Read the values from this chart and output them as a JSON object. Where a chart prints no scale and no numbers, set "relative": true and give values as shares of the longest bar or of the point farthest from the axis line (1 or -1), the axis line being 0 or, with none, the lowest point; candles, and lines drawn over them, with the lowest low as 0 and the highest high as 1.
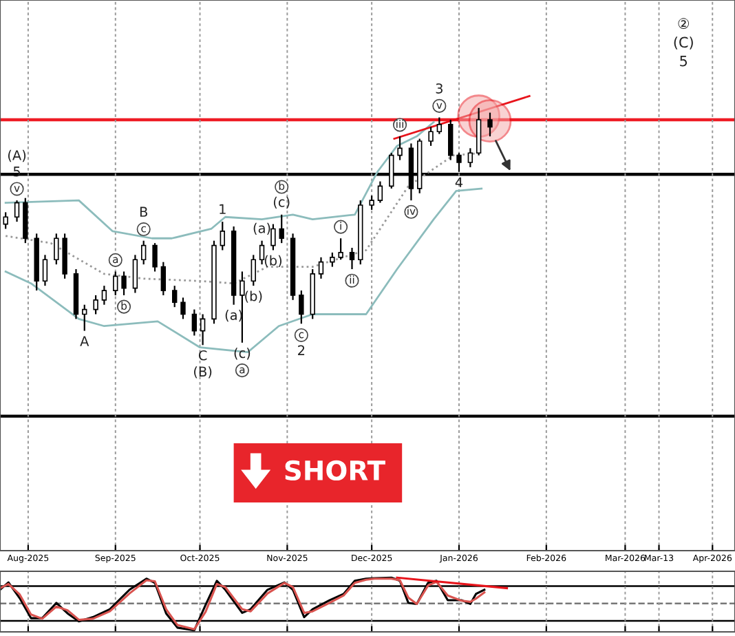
{
  "chart_data": [
    {
      "type": "candlestick",
      "relative": true,
      "grid": "x",
      "x": [
        "2025-07-24",
        "2025-07-28",
        "2025-07-31",
        "2025-08-04",
        "2025-08-07",
        "2025-08-11",
        "2025-08-14",
        "2025-08-18",
        "2025-08-21",
        "2025-08-25",
        "2025-08-28",
        "2025-09-01",
        "2025-09-04",
        "2025-09-08",
        "2025-09-11",
        "2025-09-15",
        "2025-09-18",
        "2025-09-22",
        "2025-09-25",
        "2025-09-29",
        "2025-10-02",
        "2025-10-06",
        "2025-10-09",
        "2025-10-13",
        "2025-10-16",
        "2025-10-20",
        "2025-10-23",
        "2025-10-27",
        "2025-10-30",
        "2025-11-03",
        "2025-11-06",
        "2025-11-10",
        "2025-11-13",
        "2025-11-17",
        "2025-11-20",
        "2025-11-24",
        "2025-11-27",
        "2025-12-01",
        "2025-12-04",
        "2025-12-08",
        "2025-12-11",
        "2025-12-15",
        "2025-12-18",
        "2025-12-22",
        "2025-12-25",
        "2025-12-29",
        "2026-01-01",
        "2026-01-05",
        "2026-01-08",
        "2026-01-12"
      ],
      "ohlc": [
        [
          0.51,
          0.56,
          0.49,
          0.54
        ],
        [
          0.54,
          0.61,
          0.52,
          0.6
        ],
        [
          0.6,
          0.62,
          0.43,
          0.45
        ],
        [
          0.45,
          0.47,
          0.23,
          0.27
        ],
        [
          0.27,
          0.38,
          0.25,
          0.36
        ],
        [
          0.36,
          0.47,
          0.34,
          0.45
        ],
        [
          0.45,
          0.47,
          0.28,
          0.3
        ],
        [
          0.3,
          0.32,
          0.11,
          0.13
        ],
        [
          0.13,
          0.17,
          0.06,
          0.15
        ],
        [
          0.15,
          0.21,
          0.13,
          0.19
        ],
        [
          0.19,
          0.25,
          0.17,
          0.23
        ],
        [
          0.23,
          0.31,
          0.21,
          0.29
        ],
        [
          0.29,
          0.31,
          0.21,
          0.24
        ],
        [
          0.24,
          0.38,
          0.22,
          0.36
        ],
        [
          0.36,
          0.44,
          0.34,
          0.42
        ],
        [
          0.42,
          0.43,
          0.31,
          0.33
        ],
        [
          0.33,
          0.35,
          0.21,
          0.23
        ],
        [
          0.23,
          0.25,
          0.16,
          0.18
        ],
        [
          0.18,
          0.2,
          0.11,
          0.13
        ],
        [
          0.13,
          0.15,
          0.04,
          0.06
        ],
        [
          0.06,
          0.13,
          0.0,
          0.11
        ],
        [
          0.11,
          0.44,
          0.09,
          0.42
        ],
        [
          0.42,
          0.52,
          0.4,
          0.48
        ],
        [
          0.48,
          0.5,
          0.17,
          0.21
        ],
        [
          0.21,
          0.31,
          0.01,
          0.27
        ],
        [
          0.27,
          0.38,
          0.25,
          0.36
        ],
        [
          0.36,
          0.44,
          0.34,
          0.42
        ],
        [
          0.42,
          0.51,
          0.4,
          0.49
        ],
        [
          0.49,
          0.55,
          0.43,
          0.45
        ],
        [
          0.45,
          0.47,
          0.19,
          0.21
        ],
        [
          0.21,
          0.23,
          0.09,
          0.13
        ],
        [
          0.13,
          0.32,
          0.11,
          0.3
        ],
        [
          0.3,
          0.37,
          0.28,
          0.35
        ],
        [
          0.35,
          0.39,
          0.33,
          0.37
        ],
        [
          0.37,
          0.45,
          0.36,
          0.39
        ],
        [
          0.39,
          0.41,
          0.32,
          0.36
        ],
        [
          0.36,
          0.61,
          0.34,
          0.59
        ],
        [
          0.59,
          0.63,
          0.57,
          0.61
        ],
        [
          0.61,
          0.69,
          0.6,
          0.67
        ],
        [
          0.67,
          0.81,
          0.66,
          0.8
        ],
        [
          0.8,
          0.88,
          0.78,
          0.83
        ],
        [
          0.83,
          0.85,
          0.61,
          0.66
        ],
        [
          0.66,
          0.87,
          0.64,
          0.86
        ],
        [
          0.86,
          0.92,
          0.84,
          0.9
        ],
        [
          0.9,
          0.96,
          0.89,
          0.93
        ],
        [
          0.93,
          0.95,
          0.78,
          0.8
        ],
        [
          0.8,
          0.81,
          0.73,
          0.77
        ],
        [
          0.77,
          0.83,
          0.75,
          0.81
        ],
        [
          0.81,
          1.0,
          0.8,
          0.95
        ],
        [
          0.95,
          0.98,
          0.88,
          0.92
        ]
      ],
      "series": [
        {
          "type": "line",
          "color": "#8cbcbc",
          "line_style": "solid",
          "x": [
            "2025-07-24",
            "2025-08-19",
            "2025-08-31",
            "2025-09-14",
            "2025-09-21",
            "2025-10-05",
            "2025-10-10",
            "2025-10-23",
            "2025-11-03",
            "2025-11-10",
            "2025-11-25",
            "2025-12-03",
            "2025-12-10",
            "2025-12-17",
            "2025-12-23"
          ],
          "values": [
            0.6,
            0.61,
            0.48,
            0.45,
            0.45,
            0.49,
            0.54,
            0.53,
            0.55,
            0.53,
            0.55,
            0.73,
            0.84,
            0.88,
            0.94
          ]
        },
        {
          "type": "line",
          "color": "#8cbcbc",
          "line_style": "solid",
          "x": [
            "2025-07-24",
            "2025-08-02",
            "2025-08-19",
            "2025-08-28",
            "2025-09-16",
            "2025-10-01",
            "2025-10-18",
            "2025-10-29",
            "2025-11-10",
            "2025-11-29",
            "2025-12-10",
            "2025-12-23",
            "2025-12-31",
            "2026-01-09"
          ],
          "values": [
            0.31,
            0.26,
            0.11,
            0.08,
            0.1,
            -0.01,
            -0.03,
            0.08,
            0.13,
            0.13,
            0.32,
            0.53,
            0.65,
            0.66
          ]
        },
        {
          "type": "line",
          "color": "#999999",
          "line_style": "dotted",
          "x": [
            "2025-07-24",
            "2025-08-09",
            "2025-08-28",
            "2025-09-11",
            "2025-10-01",
            "2025-10-13",
            "2025-10-25",
            "2025-11-10",
            "2025-11-29",
            "2025-12-14",
            "2025-12-30",
            "2026-01-09"
          ],
          "values": [
            0.46,
            0.43,
            0.3,
            0.28,
            0.27,
            0.26,
            0.33,
            0.33,
            0.4,
            0.67,
            0.8,
            0.81
          ]
        },
        {
          "type": "line",
          "color": "#e8141b",
          "line_style": "solid",
          "x": [
            "2025-12-09",
            "2026-01-26"
          ],
          "values": [
            0.87,
            1.05
          ]
        }
      ],
      "ref_lines": [
        {
          "axis": "y",
          "value": 0.95,
          "color": "#ee1c25"
        },
        {
          "axis": "y",
          "value": 0.72,
          "color": "#000000"
        },
        {
          "axis": "y",
          "value": -0.3,
          "color": "#000000"
        }
      ],
      "xlim": [
        "2025-07-22",
        "2026-04-09"
      ],
      "xticks": [
        {
          "value": "2025-08-01",
          "label": "Aug-2025"
        },
        {
          "value": "2025-09-01",
          "label": "Sep-2025"
        },
        {
          "value": "2025-10-01",
          "label": "Oct-2025"
        },
        {
          "value": "2025-11-01",
          "label": "Nov-2025"
        },
        {
          "value": "2025-12-01",
          "label": "Dec-2025"
        },
        {
          "value": "2026-01-01",
          "label": "Jan-2026"
        },
        {
          "value": "2026-02-01",
          "label": "Feb-2026"
        },
        {
          "value": "2026-03-01",
          "label": "Mar-2026"
        },
        {
          "value": "2026-03-13",
          "label": "Mar-13"
        },
        {
          "value": "2026-04-01",
          "label": "Apr-2026"
        }
      ],
      "annotations": [
        {
          "text": "v",
          "x": "2025-07-28",
          "y": 0.61
        },
        {
          "text": "5",
          "x": "2025-07-28",
          "y": 0.61
        },
        {
          "text": "(A)",
          "x": "2025-07-28",
          "y": 0.61
        },
        {
          "text": "A",
          "x": "2025-08-21",
          "y": 0.06
        },
        {
          "text": "a",
          "x": "2025-09-01",
          "y": 0.31
        },
        {
          "text": "b",
          "x": "2025-09-04",
          "y": 0.21
        },
        {
          "text": "c",
          "x": "2025-09-11",
          "y": 0.44
        },
        {
          "text": "B",
          "x": "2025-09-11",
          "y": 0.44
        },
        {
          "text": "C",
          "x": "2025-10-02",
          "y": 0.0
        },
        {
          "text": "(B)",
          "x": "2025-10-02",
          "y": 0.0
        },
        {
          "text": "1",
          "x": "2025-10-09",
          "y": 0.52
        },
        {
          "text": "(a)",
          "x": "2025-10-13",
          "y": 0.17
        },
        {
          "text": "(b)",
          "x": "2025-10-20",
          "y": 0.25
        },
        {
          "text": "(c)",
          "x": "2025-10-16",
          "y": 0.01
        },
        {
          "text": "a",
          "x": "2025-10-16",
          "y": 0.01
        },
        {
          "text": "(a)",
          "x": "2025-10-23",
          "y": 0.44
        },
        {
          "text": "(b)",
          "x": "2025-10-27",
          "y": 0.4
        },
        {
          "text": "(c)",
          "x": "2025-10-30",
          "y": 0.55
        },
        {
          "text": "b",
          "x": "2025-10-30",
          "y": 0.55
        },
        {
          "text": "c",
          "x": "2025-11-06",
          "y": 0.09
        },
        {
          "text": "2",
          "x": "2025-11-06",
          "y": 0.09
        },
        {
          "text": "i",
          "x": "2025-11-20",
          "y": 0.45
        },
        {
          "text": "ii",
          "x": "2025-11-24",
          "y": 0.32
        },
        {
          "text": "iii",
          "x": "2025-12-11",
          "y": 0.88
        },
        {
          "text": "iv",
          "x": "2025-12-15",
          "y": 0.61
        },
        {
          "text": "v",
          "x": "2025-12-25",
          "y": 0.96
        },
        {
          "text": "3",
          "x": "2025-12-25",
          "y": 0.96
        },
        {
          "text": "4",
          "x": "2026-01-01",
          "y": 0.73
        },
        "②",
        "(C)",
        "5",
        "SHORT"
      ]
    },
    {
      "type": "line",
      "relative": true,
      "grid": "x",
      "tick_labels": false,
      "series": [
        {
          "color": "#000000",
          "line_style": "solid",
          "x": [
            "2025-07-22",
            "2025-07-25",
            "2025-07-29",
            "2025-08-02",
            "2025-08-06",
            "2025-08-11",
            "2025-08-15",
            "2025-08-19",
            "2025-08-24",
            "2025-08-30",
            "2025-09-06",
            "2025-09-12",
            "2025-09-15",
            "2025-09-19",
            "2025-09-23",
            "2025-09-29",
            "2025-10-03",
            "2025-10-07",
            "2025-10-10",
            "2025-10-16",
            "2025-10-19",
            "2025-10-25",
            "2025-10-31",
            "2025-11-03",
            "2025-11-07",
            "2025-11-10",
            "2025-11-16",
            "2025-11-21",
            "2025-11-25",
            "2025-11-29",
            "2025-12-02",
            "2025-12-08",
            "2025-12-11",
            "2025-12-14",
            "2025-12-17",
            "2025-12-21",
            "2025-12-24",
            "2025-12-28",
            "2026-01-02",
            "2026-01-05",
            "2026-01-07",
            "2026-01-10"
          ],
          "values": [
            0.77,
            0.91,
            0.61,
            0.23,
            0.23,
            0.52,
            0.32,
            0.17,
            0.25,
            0.4,
            0.77,
            0.98,
            0.9,
            0.32,
            0.05,
            0.0,
            0.48,
            0.94,
            0.77,
            0.33,
            0.4,
            0.77,
            0.91,
            0.77,
            0.25,
            0.4,
            0.57,
            0.69,
            0.94,
            0.98,
            0.99,
            1.0,
            0.94,
            0.52,
            0.5,
            0.9,
            0.94,
            0.57,
            0.57,
            0.5,
            0.69,
            0.77
          ]
        },
        {
          "color": "#d9534f",
          "line_style": "solid",
          "x": [
            "2025-07-22",
            "2025-07-25",
            "2025-07-29",
            "2025-08-02",
            "2025-08-06",
            "2025-08-11",
            "2025-08-15",
            "2025-08-19",
            "2025-08-24",
            "2025-08-30",
            "2025-09-06",
            "2025-09-12",
            "2025-09-15",
            "2025-09-19",
            "2025-09-23",
            "2025-09-29",
            "2025-10-03",
            "2025-10-07",
            "2025-10-10",
            "2025-10-16",
            "2025-10-19",
            "2025-10-25",
            "2025-10-31",
            "2025-11-03",
            "2025-11-07",
            "2025-11-10",
            "2025-11-16",
            "2025-11-21",
            "2025-11-25",
            "2025-11-29",
            "2025-12-02",
            "2025-12-08",
            "2025-12-11",
            "2025-12-14",
            "2025-12-17",
            "2025-12-21",
            "2025-12-24",
            "2025-12-28",
            "2026-01-02",
            "2026-01-05",
            "2026-01-07",
            "2026-01-10"
          ],
          "values": [
            0.8,
            0.88,
            0.68,
            0.3,
            0.22,
            0.45,
            0.38,
            0.2,
            0.22,
            0.36,
            0.7,
            0.95,
            0.93,
            0.4,
            0.1,
            0.02,
            0.35,
            0.88,
            0.82,
            0.4,
            0.36,
            0.7,
            0.9,
            0.82,
            0.33,
            0.36,
            0.52,
            0.66,
            0.9,
            0.96,
            0.98,
            0.98,
            0.95,
            0.62,
            0.5,
            0.85,
            0.92,
            0.66,
            0.56,
            0.54,
            0.6,
            0.72
          ]
        },
        {
          "color": "#e8141b",
          "line_style": "solid",
          "x": [
            "2025-12-10",
            "2026-01-18"
          ],
          "values": [
            1.0,
            0.8
          ]
        }
      ],
      "ref_lines": [
        {
          "axis": "y",
          "value": 0.84,
          "color": "#000000",
          "line_style": "solid"
        },
        {
          "axis": "y",
          "value": 0.51,
          "color": "#777777",
          "line_style": "dashed"
        },
        {
          "axis": "y",
          "value": 0.18,
          "color": "#000000",
          "line_style": "solid"
        }
      ],
      "xlim": [
        "2025-07-22",
        "2026-04-09"
      ]
    }
  ]
}
